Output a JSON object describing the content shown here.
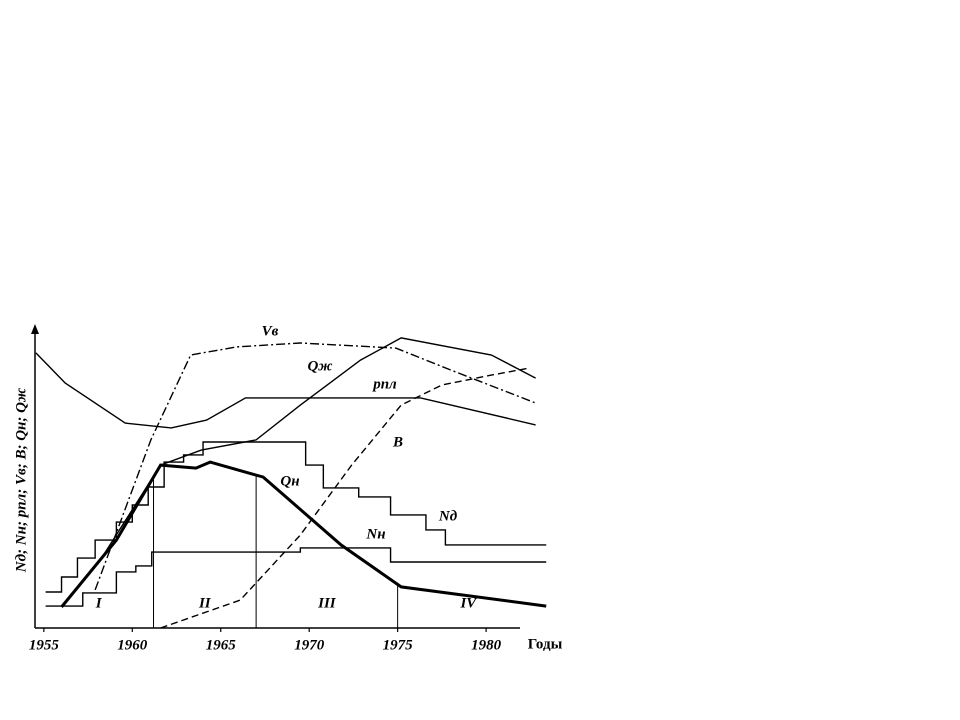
{
  "chart_data": {
    "type": "line",
    "y_label": "Nд; Nн; pпл; Vв; B; Qн; Qж",
    "x_label": "Годы",
    "xlim": [
      1954.5,
      1983.5
    ],
    "xticks": [
      1955,
      1960,
      1965,
      1970,
      1975,
      1980
    ],
    "ylim": [
      0,
      100
    ],
    "color": "#000000",
    "series": [
      {
        "name": "Vв",
        "dash": "dashdot",
        "width": 1.4,
        "step": false,
        "x": [
          1957.9,
          1961.05,
          1963.3,
          1965.9,
          1969.5,
          1974.9,
          1978,
          1982.8
        ],
        "values": [
          12.7,
          62.7,
          91,
          93.7,
          95,
          93.3,
          86,
          75
        ]
      },
      {
        "name": "Qж",
        "dash": "solid",
        "width": 1.4,
        "step": false,
        "x": [
          1958.2,
          1961.6,
          1963.9,
          1967,
          1969.5,
          1972.9,
          1975.2,
          1980.3,
          1982.8
        ],
        "values": [
          22.7,
          54.3,
          59.3,
          62.7,
          74.3,
          89.3,
          96.7,
          91,
          83.3
        ]
      },
      {
        "name": "pпл",
        "dash": "solid",
        "width": 1.4,
        "step": false,
        "x": [
          1954.55,
          1956.2,
          1959.6,
          1962.2,
          1964.2,
          1966.4,
          1976.3,
          1982.8
        ],
        "values": [
          91.7,
          81.7,
          68.3,
          66.7,
          69.3,
          76.7,
          76.7,
          67.7
        ]
      },
      {
        "name": "B",
        "dash": "dashed",
        "width": 1.4,
        "step": false,
        "x": [
          1961.6,
          1966.1,
          1969.5,
          1972.4,
          1975.2,
          1977.5,
          1980.3,
          1982.5
        ],
        "values": [
          0,
          9.3,
          31,
          54.3,
          74.3,
          81,
          84.3,
          86.7
        ]
      },
      {
        "name": "Qн",
        "dash": "solid",
        "width": 3,
        "step": false,
        "x": [
          1956,
          1959.1,
          1961.6,
          1963.6,
          1964.4,
          1967.4,
          1971.8,
          1975.2,
          1983.4
        ],
        "values": [
          7,
          29.3,
          54.3,
          53.3,
          55.3,
          50.3,
          27.7,
          13.7,
          7.3
        ]
      },
      {
        "name": "Nд",
        "dash": "solid",
        "width": 1.4,
        "step": true,
        "x": [
          1955.1,
          1956,
          1956.9,
          1957.9,
          1959.1,
          1960,
          1960.9,
          1961.8,
          1962.9,
          1964,
          1969.8,
          1970.8,
          1972.8,
          1974.6,
          1976.6,
          1977.7,
          1983.4
        ],
        "values": [
          12,
          17,
          23.3,
          29.3,
          35.3,
          41,
          47,
          55.3,
          57.7,
          62,
          54.3,
          46.7,
          43.7,
          37.7,
          32.7,
          27.7,
          27.7
        ]
      },
      {
        "name": "Nн",
        "dash": "solid",
        "width": 1.4,
        "step": true,
        "x": [
          1955.1,
          1957.2,
          1959.1,
          1960.2,
          1961.1,
          1969.5,
          1974.6,
          1983.4
        ],
        "values": [
          7.3,
          11.7,
          18.7,
          20.7,
          25.3,
          26.7,
          22,
          22
        ]
      }
    ],
    "periods": [
      {
        "label": "I",
        "start": 1955,
        "end": 1961.2
      },
      {
        "label": "II",
        "start": 1961.2,
        "end": 1967
      },
      {
        "label": "III",
        "start": 1967,
        "end": 1975
      },
      {
        "label": "IV",
        "start": 1975,
        "end": 1983
      }
    ]
  }
}
